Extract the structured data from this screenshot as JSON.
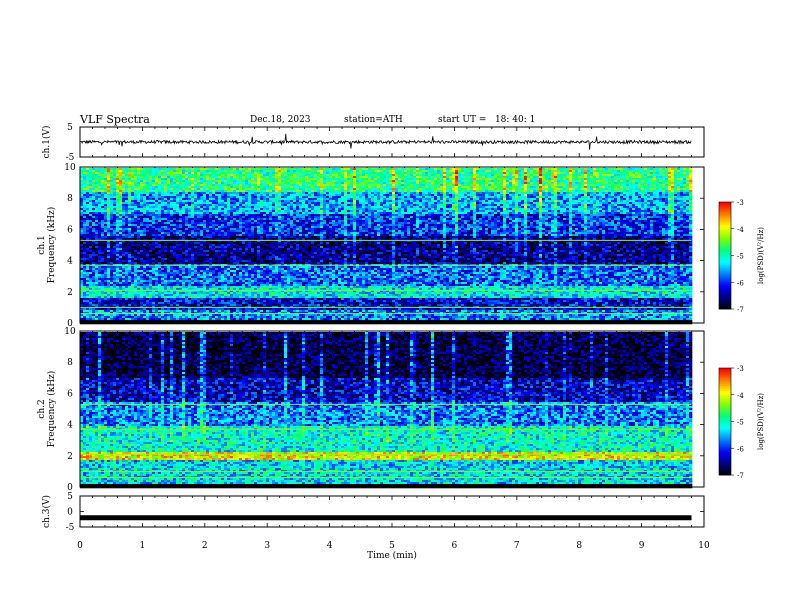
{
  "header": {
    "title": "VLF Spectra",
    "date": "Dec.18, 2023",
    "station": "station=ATH",
    "start_ut": "start UT =   18: 40: 1"
  },
  "chart_data": [
    {
      "type": "line",
      "name": "ch1-waveform",
      "ylabel": "ch.1(V)",
      "ylim": [
        -5,
        5
      ],
      "yticks": [
        "5",
        "-5"
      ],
      "xlim": [
        0,
        10
      ],
      "data_extent_min": [
        0,
        9.8
      ],
      "baseline_value": 0,
      "noise_amplitude": 0.5,
      "color": "#000000"
    },
    {
      "type": "heatmap",
      "name": "ch1-spectrogram",
      "ylabel": "ch.1\nFrequency (kHz)",
      "ylim": [
        0,
        10
      ],
      "yticks": [
        "0",
        "2",
        "4",
        "6",
        "8",
        "10"
      ],
      "xlim": [
        0,
        10
      ],
      "data_extent_min": [
        0,
        9.8
      ],
      "bands": [
        {
          "f": [
            0.0,
            0.3
          ],
          "level": -7
        },
        {
          "f": [
            0.3,
            0.9
          ],
          "level": -5.6
        },
        {
          "f": [
            0.9,
            1.7
          ],
          "level": -6.2
        },
        {
          "f": [
            1.7,
            2.4
          ],
          "level": -5.2
        },
        {
          "f": [
            2.4,
            3.8
          ],
          "level": -5.8
        },
        {
          "f": [
            3.8,
            5.6
          ],
          "level": -6.5
        },
        {
          "f": [
            5.6,
            7.0
          ],
          "level": -6.0
        },
        {
          "f": [
            7.0,
            8.5
          ],
          "level": -5.5
        },
        {
          "f": [
            8.5,
            10.0
          ],
          "level": -4.8
        }
      ],
      "colorbar": {
        "label": "log(PSD)(V²/Hz)",
        "ticks": [
          "-3",
          "-4",
          "-5",
          "-6",
          "-7"
        ],
        "range": [
          -7,
          -3
        ]
      }
    },
    {
      "type": "heatmap",
      "name": "ch2-spectrogram",
      "ylabel": "ch.2\nFrequency (kHz)",
      "ylim": [
        0,
        10
      ],
      "yticks": [
        "0",
        "2",
        "4",
        "6",
        "8",
        "10"
      ],
      "xlim": [
        0,
        10
      ],
      "data_extent_min": [
        0,
        9.8
      ],
      "bands": [
        {
          "f": [
            0.0,
            0.3
          ],
          "level": -7
        },
        {
          "f": [
            0.3,
            1.8
          ],
          "level": -5.3
        },
        {
          "f": [
            1.8,
            2.3
          ],
          "level": -3.9
        },
        {
          "f": [
            2.3,
            4.0
          ],
          "level": -5.1
        },
        {
          "f": [
            4.0,
            5.5
          ],
          "level": -5.7
        },
        {
          "f": [
            5.5,
            7.0
          ],
          "level": -6.3
        },
        {
          "f": [
            7.0,
            10.0
          ],
          "level": -6.8
        }
      ],
      "colorbar": {
        "label": "log(PSD)(V²/Hz)",
        "ticks": [
          "-3",
          "-4",
          "-5",
          "-6",
          "-7"
        ],
        "range": [
          -7,
          -3
        ]
      }
    },
    {
      "type": "line",
      "name": "ch3-waveform",
      "ylabel": "ch.3(V)",
      "ylim": [
        -5,
        5
      ],
      "yticks": [
        "5",
        "0",
        "-5"
      ],
      "xlim": [
        0,
        10
      ],
      "data_extent_min": [
        0,
        9.8
      ],
      "baseline_value": -2,
      "noise_amplitude": 0.0,
      "color": "#000000"
    }
  ],
  "x_axis": {
    "label": "Time  (min)",
    "ticks": [
      "0",
      "1",
      "2",
      "3",
      "4",
      "5",
      "6",
      "7",
      "8",
      "9",
      "10"
    ]
  },
  "colormap": [
    "#000000",
    "#000080",
    "#0000ff",
    "#0080ff",
    "#00ffff",
    "#00ff80",
    "#80ff00",
    "#ffff00",
    "#ff8000",
    "#ff0000",
    "#ffffff"
  ]
}
